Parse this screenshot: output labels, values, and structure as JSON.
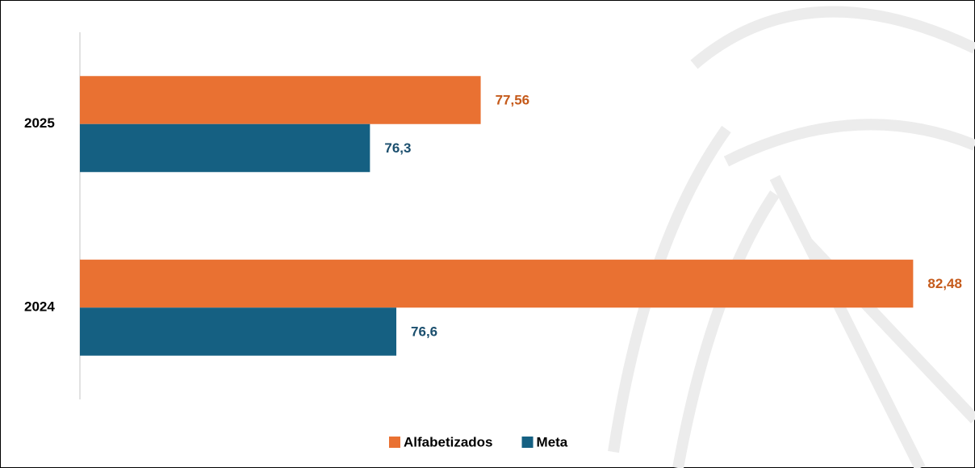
{
  "chart_data": {
    "type": "bar",
    "orientation": "horizontal",
    "categories": [
      "2025",
      "2024"
    ],
    "series": [
      {
        "name": "Alfabetizados",
        "color": "#e97132",
        "label_color": "#c55a1a",
        "values": [
          77.56,
          82.48
        ],
        "value_labels": [
          "77,56",
          "82,48"
        ]
      },
      {
        "name": "Meta",
        "color": "#156082",
        "label_color": "#1b4f6e",
        "values": [
          76.3,
          76.6
        ],
        "value_labels": [
          "76,3",
          "76,6"
        ]
      }
    ],
    "xlim": [
      73,
      83
    ],
    "legend": "bottom"
  }
}
